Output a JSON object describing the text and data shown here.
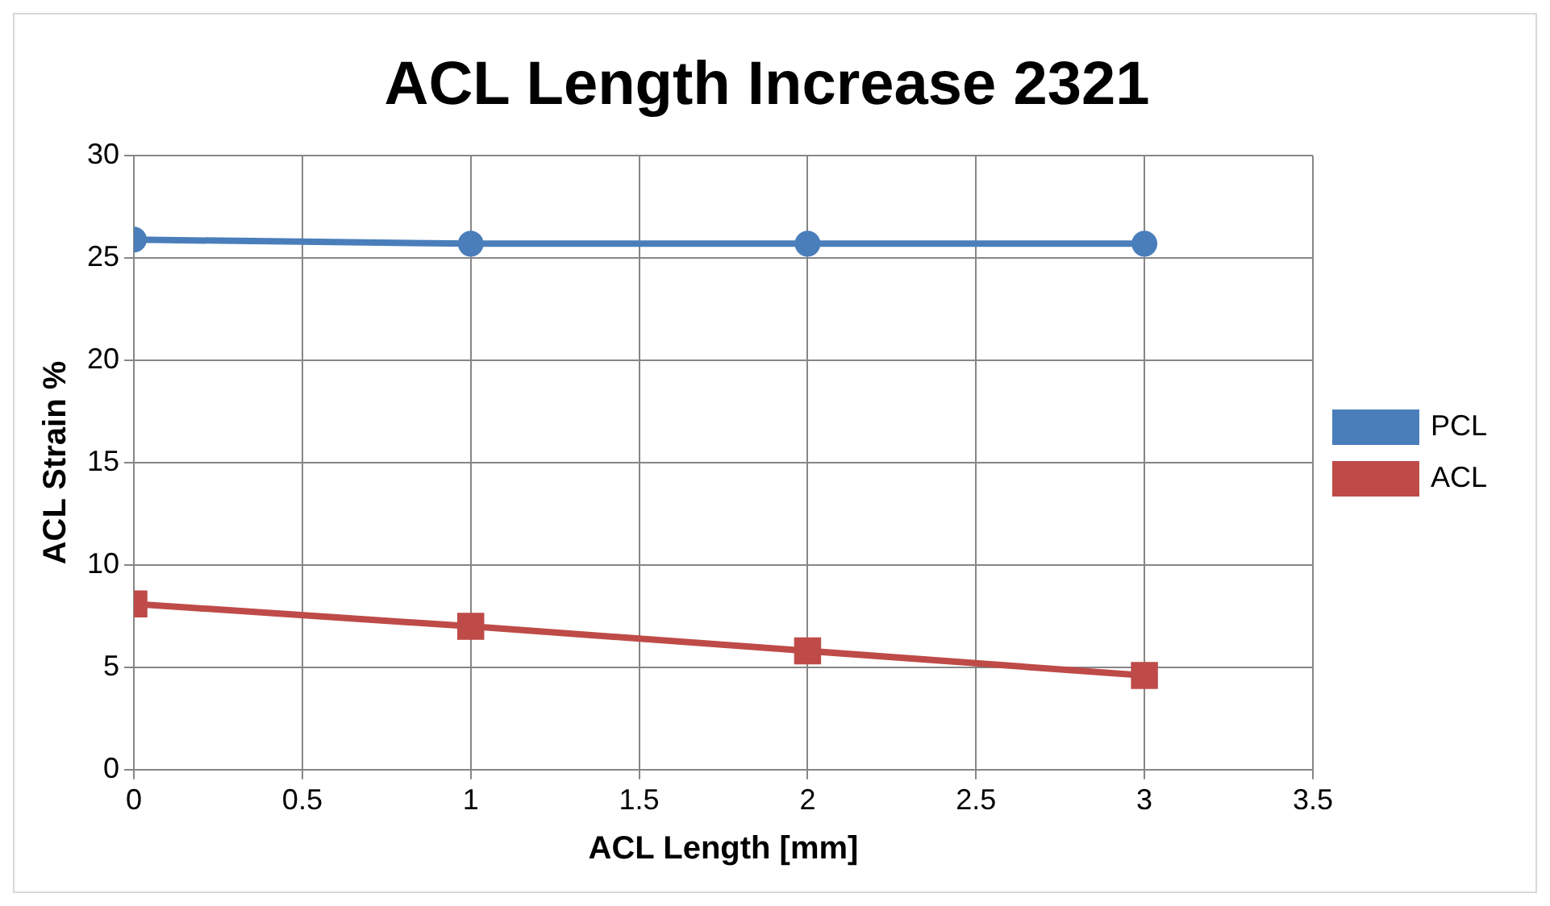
{
  "chart_data": {
    "type": "line",
    "title": "ACL Length Increase 2321",
    "xlabel": "ACL Length [mm]",
    "ylabel": "ACL Strain %",
    "x": [
      0,
      1,
      2,
      3
    ],
    "series": [
      {
        "name": "PCL",
        "color": "#4a7ebb",
        "marker": "circle",
        "values": [
          25.9,
          25.7,
          25.7,
          25.7
        ]
      },
      {
        "name": "ACL",
        "color": "#be4b48",
        "marker": "square",
        "values": [
          8.1,
          7.0,
          5.8,
          4.6
        ]
      }
    ],
    "xlim": [
      0,
      3.5
    ],
    "xticks": [
      0,
      0.5,
      1,
      1.5,
      2,
      2.5,
      3,
      3.5
    ],
    "ylim": [
      0,
      30
    ],
    "yticks": [
      0,
      5,
      10,
      15,
      20,
      25,
      30
    ],
    "grid": true,
    "legend": "right",
    "line_style": "solid"
  }
}
